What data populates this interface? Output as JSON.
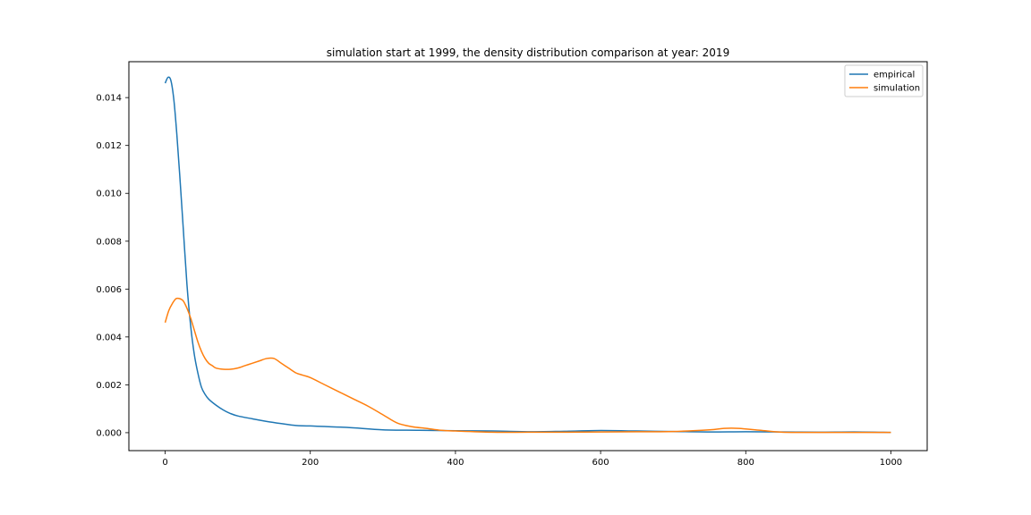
{
  "chart_data": {
    "type": "line",
    "title": "simulation start at 1999, the density distribution comparison at year: 2019",
    "xlabel": "",
    "ylabel": "",
    "xlim": [
      -50,
      1050
    ],
    "ylim": [
      -0.00075,
      0.0155
    ],
    "xticks": [
      0,
      200,
      400,
      600,
      800,
      1000
    ],
    "xtick_labels": [
      "0",
      "200",
      "400",
      "600",
      "800",
      "1000"
    ],
    "yticks": [
      0.0,
      0.002,
      0.004,
      0.006,
      0.008,
      0.01,
      0.012,
      0.014
    ],
    "ytick_labels": [
      "0.000",
      "0.002",
      "0.004",
      "0.006",
      "0.008",
      "0.010",
      "0.012",
      "0.014"
    ],
    "grid": false,
    "legend_position": "top-right",
    "series": [
      {
        "name": "empirical",
        "color": "#1f77b4",
        "x": [
          0,
          4,
          8,
          12,
          16,
          20,
          25,
          30,
          35,
          40,
          45,
          50,
          55,
          60,
          70,
          80,
          90,
          100,
          120,
          140,
          160,
          180,
          200,
          250,
          300,
          350,
          400,
          450,
          500,
          550,
          600,
          650,
          700,
          750,
          800,
          850,
          900,
          950,
          1000
        ],
        "y": [
          0.0146,
          0.01485,
          0.0147,
          0.0139,
          0.0125,
          0.0108,
          0.0085,
          0.0062,
          0.0045,
          0.0033,
          0.0025,
          0.0019,
          0.0016,
          0.0014,
          0.00115,
          0.00095,
          0.0008,
          0.0007,
          0.00058,
          0.00047,
          0.00038,
          0.0003,
          0.00028,
          0.00022,
          0.00012,
          0.0001,
          8e-05,
          7e-05,
          4e-05,
          6e-05,
          9e-05,
          7e-05,
          5e-05,
          3e-05,
          4e-05,
          3e-05,
          2e-05,
          3e-05,
          1e-05
        ]
      },
      {
        "name": "simulation",
        "color": "#ff7f0e",
        "x": [
          0,
          5,
          10,
          15,
          20,
          25,
          30,
          35,
          40,
          45,
          50,
          55,
          60,
          65,
          70,
          80,
          90,
          100,
          110,
          120,
          130,
          140,
          150,
          160,
          170,
          180,
          190,
          200,
          220,
          240,
          260,
          280,
          300,
          320,
          340,
          360,
          380,
          400,
          450,
          500,
          550,
          600,
          650,
          700,
          750,
          770,
          790,
          820,
          850,
          900,
          950,
          1000
        ],
        "y": [
          0.0046,
          0.0051,
          0.0054,
          0.0056,
          0.0056,
          0.0055,
          0.0052,
          0.0048,
          0.0043,
          0.0038,
          0.0034,
          0.0031,
          0.0029,
          0.0028,
          0.0027,
          0.00265,
          0.00265,
          0.0027,
          0.0028,
          0.0029,
          0.003,
          0.0031,
          0.0031,
          0.0029,
          0.0027,
          0.0025,
          0.0024,
          0.0023,
          0.002,
          0.0017,
          0.0014,
          0.0011,
          0.00075,
          0.0004,
          0.00025,
          0.00018,
          0.0001,
          7e-05,
          2e-05,
          2e-05,
          2e-05,
          3e-05,
          4e-05,
          5e-05,
          0.00012,
          0.00018,
          0.00018,
          0.0001,
          2e-05,
          1e-05,
          1e-05,
          1e-05
        ]
      }
    ]
  }
}
